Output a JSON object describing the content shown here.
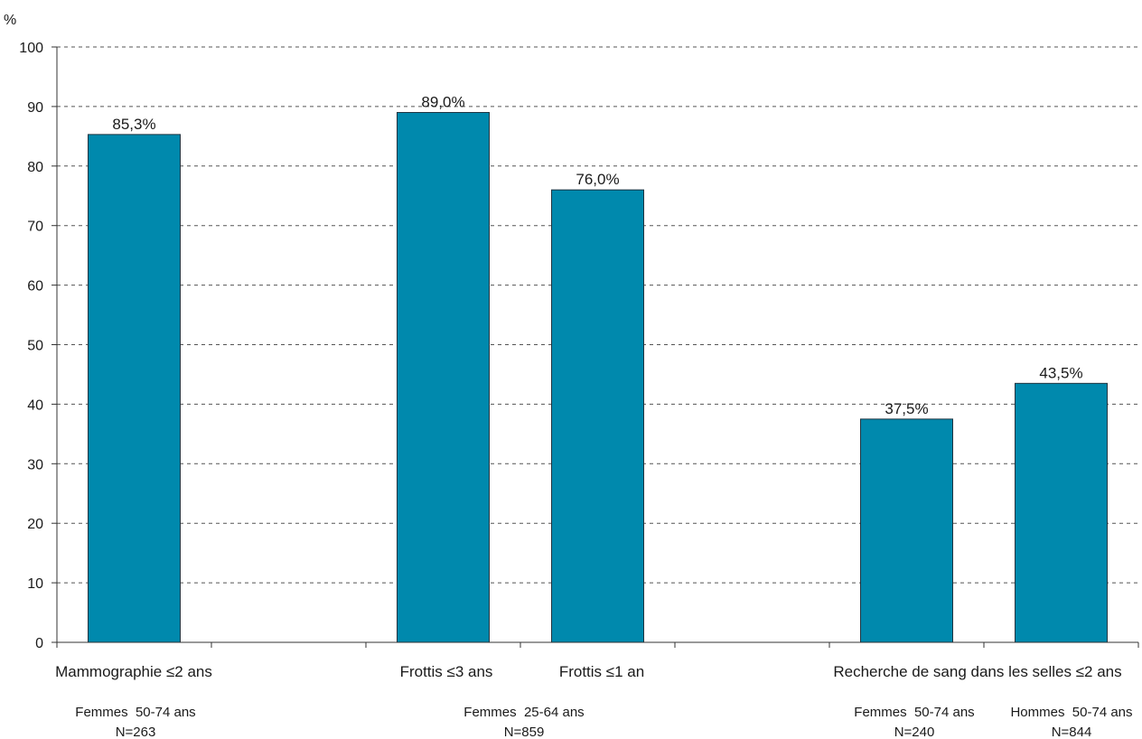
{
  "chart_data": {
    "type": "bar",
    "title": "",
    "xlabel": "",
    "ylabel": "%",
    "ylim": [
      0,
      100
    ],
    "yticks": [
      "0",
      "10",
      "20",
      "30",
      "40",
      "50",
      "60",
      "70",
      "80",
      "90",
      "100"
    ],
    "grid": true,
    "bar_color": "#0089ad",
    "categories": [
      "Mammographie ≤2 ans",
      "",
      "Frottis ≤3 ans",
      "Frottis ≤1 an",
      "",
      "Recherche de sang dans les selles ≤2 ans",
      ""
    ],
    "values": [
      85.3,
      null,
      89.0,
      76.0,
      null,
      37.5,
      43.5
    ],
    "value_labels": [
      "85,3%",
      "",
      "89,0%",
      "76,0%",
      "",
      "37,5%",
      "43,5%"
    ],
    "population_labels": [
      {
        "group": "Femmes  50-74 ans",
        "n": "N=263"
      },
      {
        "group": "Femmes  25-64 ans",
        "n": "N=859"
      },
      {
        "group": "Femmes  50-74 ans",
        "n": "N=240"
      },
      {
        "group": "Hommes  50-74 ans",
        "n": "N=844"
      }
    ]
  }
}
